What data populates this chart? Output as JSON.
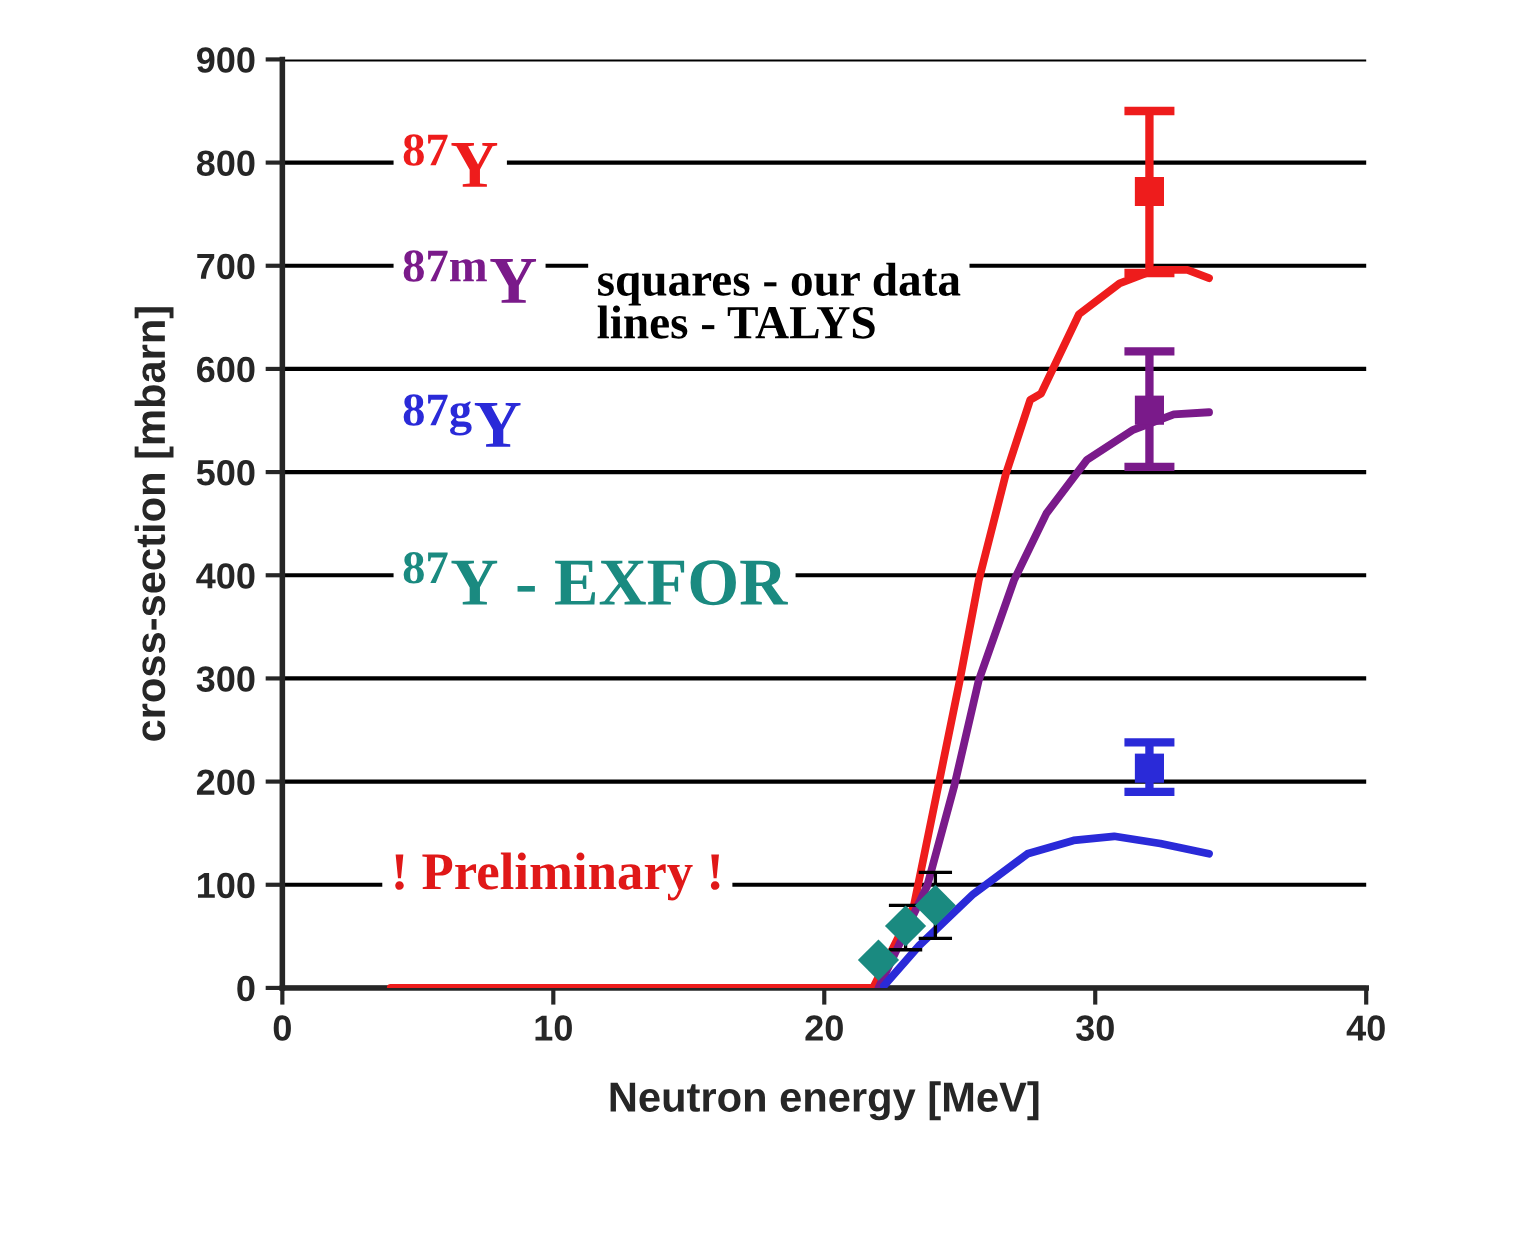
{
  "chart_data": {
    "type": "line",
    "xlabel": "Neutron energy [MeV]",
    "ylabel": "cross-section [mbarn]",
    "xlim": [
      0,
      40
    ],
    "xticks": [
      0,
      10,
      20,
      30,
      40
    ],
    "ylim": [
      0,
      900
    ],
    "yticks": [
      0,
      100,
      200,
      300,
      400,
      500,
      600,
      700,
      800,
      900
    ],
    "grid": "y",
    "series": [
      {
        "name": "$^{87}$Y",
        "color": "#ee1c1c",
        "marker": "none",
        "x": [
          4,
          21.8,
          23.3,
          24.1,
          25.0,
          25.7,
          26.7,
          27.6,
          28.0,
          29.4,
          30.9,
          32.2,
          33.4,
          34.2
        ],
        "values": [
          0,
          0,
          79,
          182,
          298,
          395,
          498,
          570,
          576,
          653,
          683,
          696,
          696,
          688
        ]
      },
      {
        "name": "$^{87m}$Y",
        "color": "#7a1a8a",
        "marker": "none",
        "x": [
          22.0,
          23.8,
          24.8,
          25.7,
          27.0,
          28.2,
          29.7,
          31.4,
          32.9,
          34.2
        ],
        "values": [
          0,
          99,
          196,
          298,
          395,
          460,
          512,
          541,
          556,
          558
        ]
      },
      {
        "name": "$^{87g}$Y",
        "color": "#2a2ad8",
        "marker": "none",
        "x": [
          22.2,
          23.5,
          25.5,
          27.5,
          29.2,
          30.7,
          32.4,
          34.2
        ],
        "values": [
          2,
          41,
          91,
          130,
          143,
          147,
          140,
          130
        ]
      },
      {
        "name": "$^{87}$Y - EXFOR",
        "type": "scatter",
        "color": "#1a8a80",
        "marker": "diamond",
        "x": [
          22.0,
          23.0,
          24.1
        ],
        "values": [
          27,
          60,
          80
        ],
        "errors": [
          null,
          [
            37,
            80
          ],
          [
            48,
            112
          ]
        ]
      },
      {
        "type": "scatter",
        "color": "#ee1c1c",
        "marker": "square",
        "x": [
          32
        ],
        "values": [
          772
        ],
        "errors": [
          [
            693,
            850
          ]
        ]
      },
      {
        "type": "scatter",
        "color": "#7a1a8a",
        "marker": "square",
        "x": [
          32
        ],
        "values": [
          560
        ],
        "errors": [
          [
            505,
            617
          ]
        ]
      },
      {
        "type": "scatter",
        "color": "#2a2ad8",
        "marker": "square",
        "x": [
          32
        ],
        "values": [
          213
        ],
        "errors": [
          [
            190,
            238
          ]
        ]
      }
    ],
    "annotations": [
      "squares - our data\nlines - TALYS",
      "! Preliminary !"
    ]
  }
}
